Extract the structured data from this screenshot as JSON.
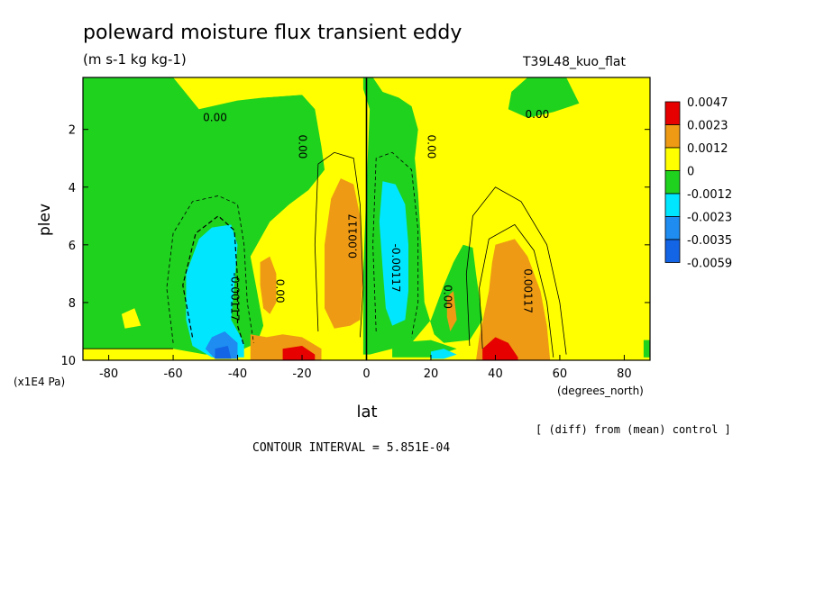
{
  "header": {
    "title": "poleward moisture flux transient eddy",
    "units": "(m s-1 kg kg-1)",
    "run_id": "T39L48_kuo_flat"
  },
  "notes": {
    "diff": "[ (diff) from (mean) control ]",
    "contour_interval": "CONTOUR INTERVAL = 5.851E-04"
  },
  "colors": {
    "red": "#e60000",
    "orange": "#ee9a14",
    "yellow": "#ffff00",
    "green": "#1ed21e",
    "cyan": "#00e6ff",
    "mid_blue": "#1e8cf0",
    "blue": "#1464e6"
  },
  "chart_data": {
    "type": "contour",
    "xlabel": "lat",
    "xlabel_units": "(degrees_north)",
    "ylabel": "plev",
    "ylabel_units": "(x1E4 Pa)",
    "xlim": [
      -88,
      88
    ],
    "ylim": [
      0.2,
      10
    ],
    "y_inverted": true,
    "x_ticks": [
      -80,
      -60,
      -40,
      -20,
      0,
      20,
      40,
      60,
      80
    ],
    "y_ticks": [
      2,
      4,
      6,
      8,
      10
    ],
    "contour_interval": 0.0005851,
    "colorbar": {
      "labels": [
        "0.0047",
        "0.0023",
        "0.0012",
        "0",
        "-0.0012",
        "-0.0023",
        "-0.0035",
        "-0.0059"
      ],
      "colors": [
        "#e60000",
        "#ee9a14",
        "#ffff00",
        "#1ed21e",
        "#00e6ff",
        "#1e8cf0",
        "#1464e6"
      ]
    },
    "contour_labels": [
      {
        "text": "0.00",
        "lat": -47,
        "plev": 1.6,
        "rotate": 0
      },
      {
        "text": "0.00",
        "lat": 53,
        "plev": 1.5,
        "rotate": 0
      },
      {
        "text": "0.00",
        "lat": -20,
        "plev": 2.6,
        "rotate": 90
      },
      {
        "text": "0.00",
        "lat": 20,
        "plev": 2.6,
        "rotate": 90
      },
      {
        "text": "0.00117",
        "lat": -4,
        "plev": 5.7,
        "rotate": -90
      },
      {
        "text": "-0.00117",
        "lat": 9,
        "plev": 6.8,
        "rotate": 90
      },
      {
        "text": "-0.00117",
        "lat": -41,
        "plev": 7.8,
        "rotate": 90
      },
      {
        "text": "0.00117",
        "lat": 50,
        "plev": 7.6,
        "rotate": 90
      },
      {
        "text": "0.00",
        "lat": -27,
        "plev": 7.6,
        "rotate": 90
      },
      {
        "text": "0.00",
        "lat": 25,
        "plev": 7.8,
        "rotate": 90
      }
    ],
    "features": [
      {
        "sign": "positive",
        "lat_range": [
          -12,
          -1
        ],
        "plev_range": [
          3.8,
          8.8
        ],
        "peak": 0.00117
      },
      {
        "sign": "negative",
        "lat_range": [
          3,
          15
        ],
        "plev_range": [
          3.8,
          9.0
        ],
        "peak": -0.00117
      },
      {
        "sign": "negative",
        "lat_range": [
          -55,
          -38
        ],
        "plev_range": [
          5.2,
          9.9
        ],
        "peak": -0.0035
      },
      {
        "sign": "positive",
        "lat_range": [
          36,
          56
        ],
        "plev_range": [
          5.8,
          10
        ],
        "peak": 0.0047
      },
      {
        "sign": "positive",
        "lat_range": [
          -26,
          -16
        ],
        "plev_range": [
          9.3,
          10
        ],
        "peak": 0.0047
      }
    ]
  }
}
